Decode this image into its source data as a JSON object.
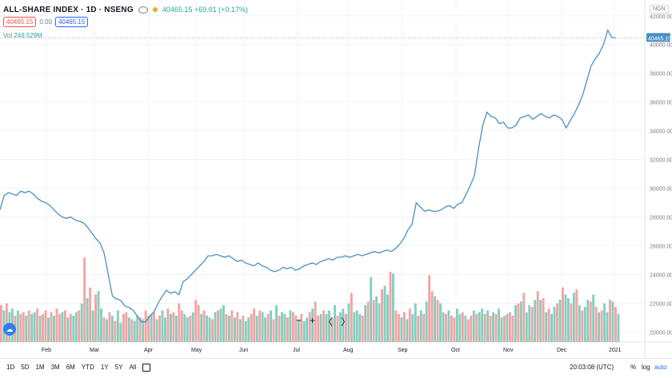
{
  "header": {
    "symbol": "ALL-SHARE INDEX · 1D · NSENG",
    "ohlc": "40465.15 +69.01 (+0.17%)",
    "bid": "40465.15",
    "spread": "0.00",
    "ask": "40465.15",
    "vol_label": "Vol",
    "vol_value": "249.529M",
    "currency": "NGN"
  },
  "chart_data": {
    "type": "line",
    "title": "",
    "xlabel": "",
    "ylabel": "",
    "x_tick_labels": [
      "Feb",
      "Mar",
      "Apr",
      "May",
      "Jun",
      "Jul",
      "Aug",
      "Sep",
      "Oct",
      "Nov",
      "Dec",
      "2021"
    ],
    "y_ticks": [
      20000,
      22000,
      24000,
      26000,
      28000,
      30000,
      32000,
      34000,
      36000,
      38000,
      40000,
      42000
    ],
    "y_tick_labels": [
      "20000.00",
      "22000.00",
      "24000.00",
      "26000.00",
      "28000.00",
      "30000.00",
      "32000.00",
      "34000.00",
      "36000.00",
      "38000.00",
      "40000.00",
      "42000.00"
    ],
    "ylim": [
      19300,
      43100
    ],
    "last_price_label": "40465.15",
    "price_series": {
      "color": "#4a90c2",
      "values": [
        28500,
        29500,
        29700,
        29600,
        29500,
        29800,
        29700,
        29800,
        29600,
        29300,
        29100,
        29000,
        28800,
        28500,
        28200,
        28000,
        27900,
        28000,
        27800,
        27700,
        27600,
        27300,
        26900,
        26500,
        26200,
        25500,
        24000,
        22500,
        22300,
        22200,
        21800,
        21700,
        21500,
        21100,
        20700,
        20700,
        21100,
        21400,
        22000,
        22500,
        22900,
        22700,
        22800,
        22600,
        23500,
        23700,
        24000,
        24300,
        24600,
        24900,
        25300,
        25300,
        25400,
        25300,
        25200,
        25300,
        25100,
        24900,
        25000,
        24800,
        24700,
        24600,
        24800,
        24600,
        24500,
        24300,
        24200,
        24300,
        24500,
        24400,
        24500,
        24300,
        24400,
        24600,
        24700,
        24800,
        24700,
        24900,
        25000,
        25100,
        25000,
        25200,
        25200,
        25300,
        25200,
        25300,
        25400,
        25300,
        25400,
        25500,
        25600,
        25500,
        25600,
        25700,
        25600,
        25800,
        26100,
        26500,
        27100,
        27500,
        29000,
        28700,
        28400,
        28500,
        28400,
        28400,
        28500,
        28700,
        28800,
        28600,
        28900,
        29000,
        29600,
        30200,
        30900,
        32800,
        34400,
        35300,
        35000,
        34900,
        34500,
        34600,
        34200,
        34200,
        34400,
        34900,
        35000,
        35100,
        34800,
        35000,
        35200,
        35000,
        34900,
        35100,
        35000,
        34800,
        34200,
        34700,
        35200,
        35800,
        36500,
        37500,
        38500,
        39000,
        39400,
        40000,
        41000,
        40500,
        40465
      ]
    },
    "volume_series": {
      "up_color": "#82cfc0",
      "down_color": "#f4a3a3",
      "values": [
        21,
        18,
        22,
        17,
        19,
        15,
        18,
        16,
        17,
        15,
        18,
        16,
        17,
        19,
        15,
        16,
        18,
        14,
        17,
        15,
        19,
        16,
        17,
        18,
        14,
        16,
        15,
        17,
        18,
        22,
        48,
        25,
        31,
        18,
        27,
        29,
        19,
        14,
        13,
        17,
        15,
        12,
        18,
        11,
        16,
        17,
        14,
        13,
        12,
        15,
        14,
        13,
        18,
        15,
        16,
        17,
        13,
        15,
        18,
        14,
        19,
        16,
        17,
        15,
        22,
        18,
        16,
        14,
        15,
        17,
        24,
        21,
        16,
        18,
        15,
        14,
        13,
        17,
        18,
        19,
        21,
        16,
        15,
        18,
        14,
        17,
        13,
        15,
        12,
        14,
        16,
        19,
        15,
        18,
        17,
        14,
        16,
        18,
        13,
        21,
        15,
        17,
        16,
        14,
        18,
        17,
        15,
        13,
        16,
        12,
        14,
        17,
        19,
        23,
        15,
        16,
        18,
        16,
        18,
        14,
        21,
        15,
        17,
        19,
        16,
        22,
        28,
        17,
        18,
        16,
        15,
        21,
        23,
        37,
        24,
        26,
        22,
        30,
        32,
        27,
        40,
        39,
        18,
        16,
        14,
        17,
        13,
        19,
        16,
        22,
        15,
        18,
        16,
        23,
        38,
        29,
        26,
        24,
        22,
        17,
        16,
        18,
        15,
        14,
        19,
        16,
        17,
        15,
        13,
        15,
        18,
        16,
        17,
        19,
        16,
        18,
        15,
        17,
        16,
        19,
        14,
        15,
        16,
        17,
        15,
        21,
        22,
        23,
        28,
        17,
        21,
        20,
        24,
        29,
        24,
        25,
        17,
        19,
        16,
        20,
        22,
        24,
        31,
        27,
        25,
        22,
        28,
        30,
        21,
        18,
        20,
        24,
        23,
        27,
        20,
        17,
        18,
        22,
        17,
        24,
        23,
        20,
        16
      ],
      "directions": [
        0,
        1,
        0,
        1,
        1,
        0,
        1,
        0,
        0,
        1,
        0,
        1,
        1,
        0,
        1,
        0,
        0,
        1,
        0,
        1,
        0,
        0,
        1,
        0,
        1,
        0,
        1,
        1,
        0,
        1,
        0,
        1,
        0,
        1,
        0,
        1,
        1,
        0,
        1,
        0,
        1,
        0,
        1,
        1,
        0,
        0,
        1,
        0,
        1,
        1,
        0,
        1,
        0,
        0,
        1,
        0,
        1,
        0,
        1,
        1,
        0,
        1,
        0,
        1,
        0,
        0,
        1,
        1,
        0,
        1,
        0,
        0,
        1,
        0,
        1,
        1,
        0,
        1,
        0,
        1,
        1,
        0,
        1,
        0,
        1,
        0,
        1,
        0,
        1,
        1,
        0,
        0,
        1,
        0,
        1,
        1,
        0,
        1,
        0,
        1,
        0,
        1,
        1,
        0,
        1,
        0,
        0,
        1,
        0,
        1,
        1,
        0,
        1,
        0,
        0,
        1,
        0,
        1,
        1,
        0,
        1,
        0,
        1,
        1,
        0,
        1,
        0,
        1,
        1,
        1,
        0,
        1,
        0,
        1,
        0,
        1,
        1,
        0,
        1,
        1,
        0,
        1,
        0,
        0,
        1,
        0,
        1,
        0,
        1,
        1,
        0,
        1,
        0,
        1,
        0,
        0,
        1,
        0,
        1,
        1,
        0,
        1,
        0,
        0,
        1,
        1,
        0,
        1,
        0,
        0,
        1,
        0,
        1,
        1,
        0,
        1,
        0,
        1,
        0,
        1,
        1,
        0,
        1,
        0,
        0,
        1,
        0,
        1,
        0,
        1,
        1,
        0,
        1,
        0,
        1,
        0,
        1,
        0,
        1,
        1,
        0,
        1,
        0,
        1,
        1,
        0,
        1,
        0,
        1,
        0,
        1,
        1,
        0,
        1,
        0,
        1,
        0,
        1,
        1,
        0,
        1,
        0,
        1
      ]
    },
    "grid": true,
    "legend": "none"
  },
  "nav": {
    "zoom_out": "−",
    "zoom_in": "+",
    "prev": "〈",
    "next": "〉"
  },
  "bottom": {
    "ranges": [
      "1D",
      "5D",
      "1M",
      "3M",
      "6M",
      "YTD",
      "1Y",
      "5Y",
      "All"
    ],
    "time": "20:03:08 (UTC)",
    "percent": "%",
    "log": "log",
    "auto": "auto"
  }
}
